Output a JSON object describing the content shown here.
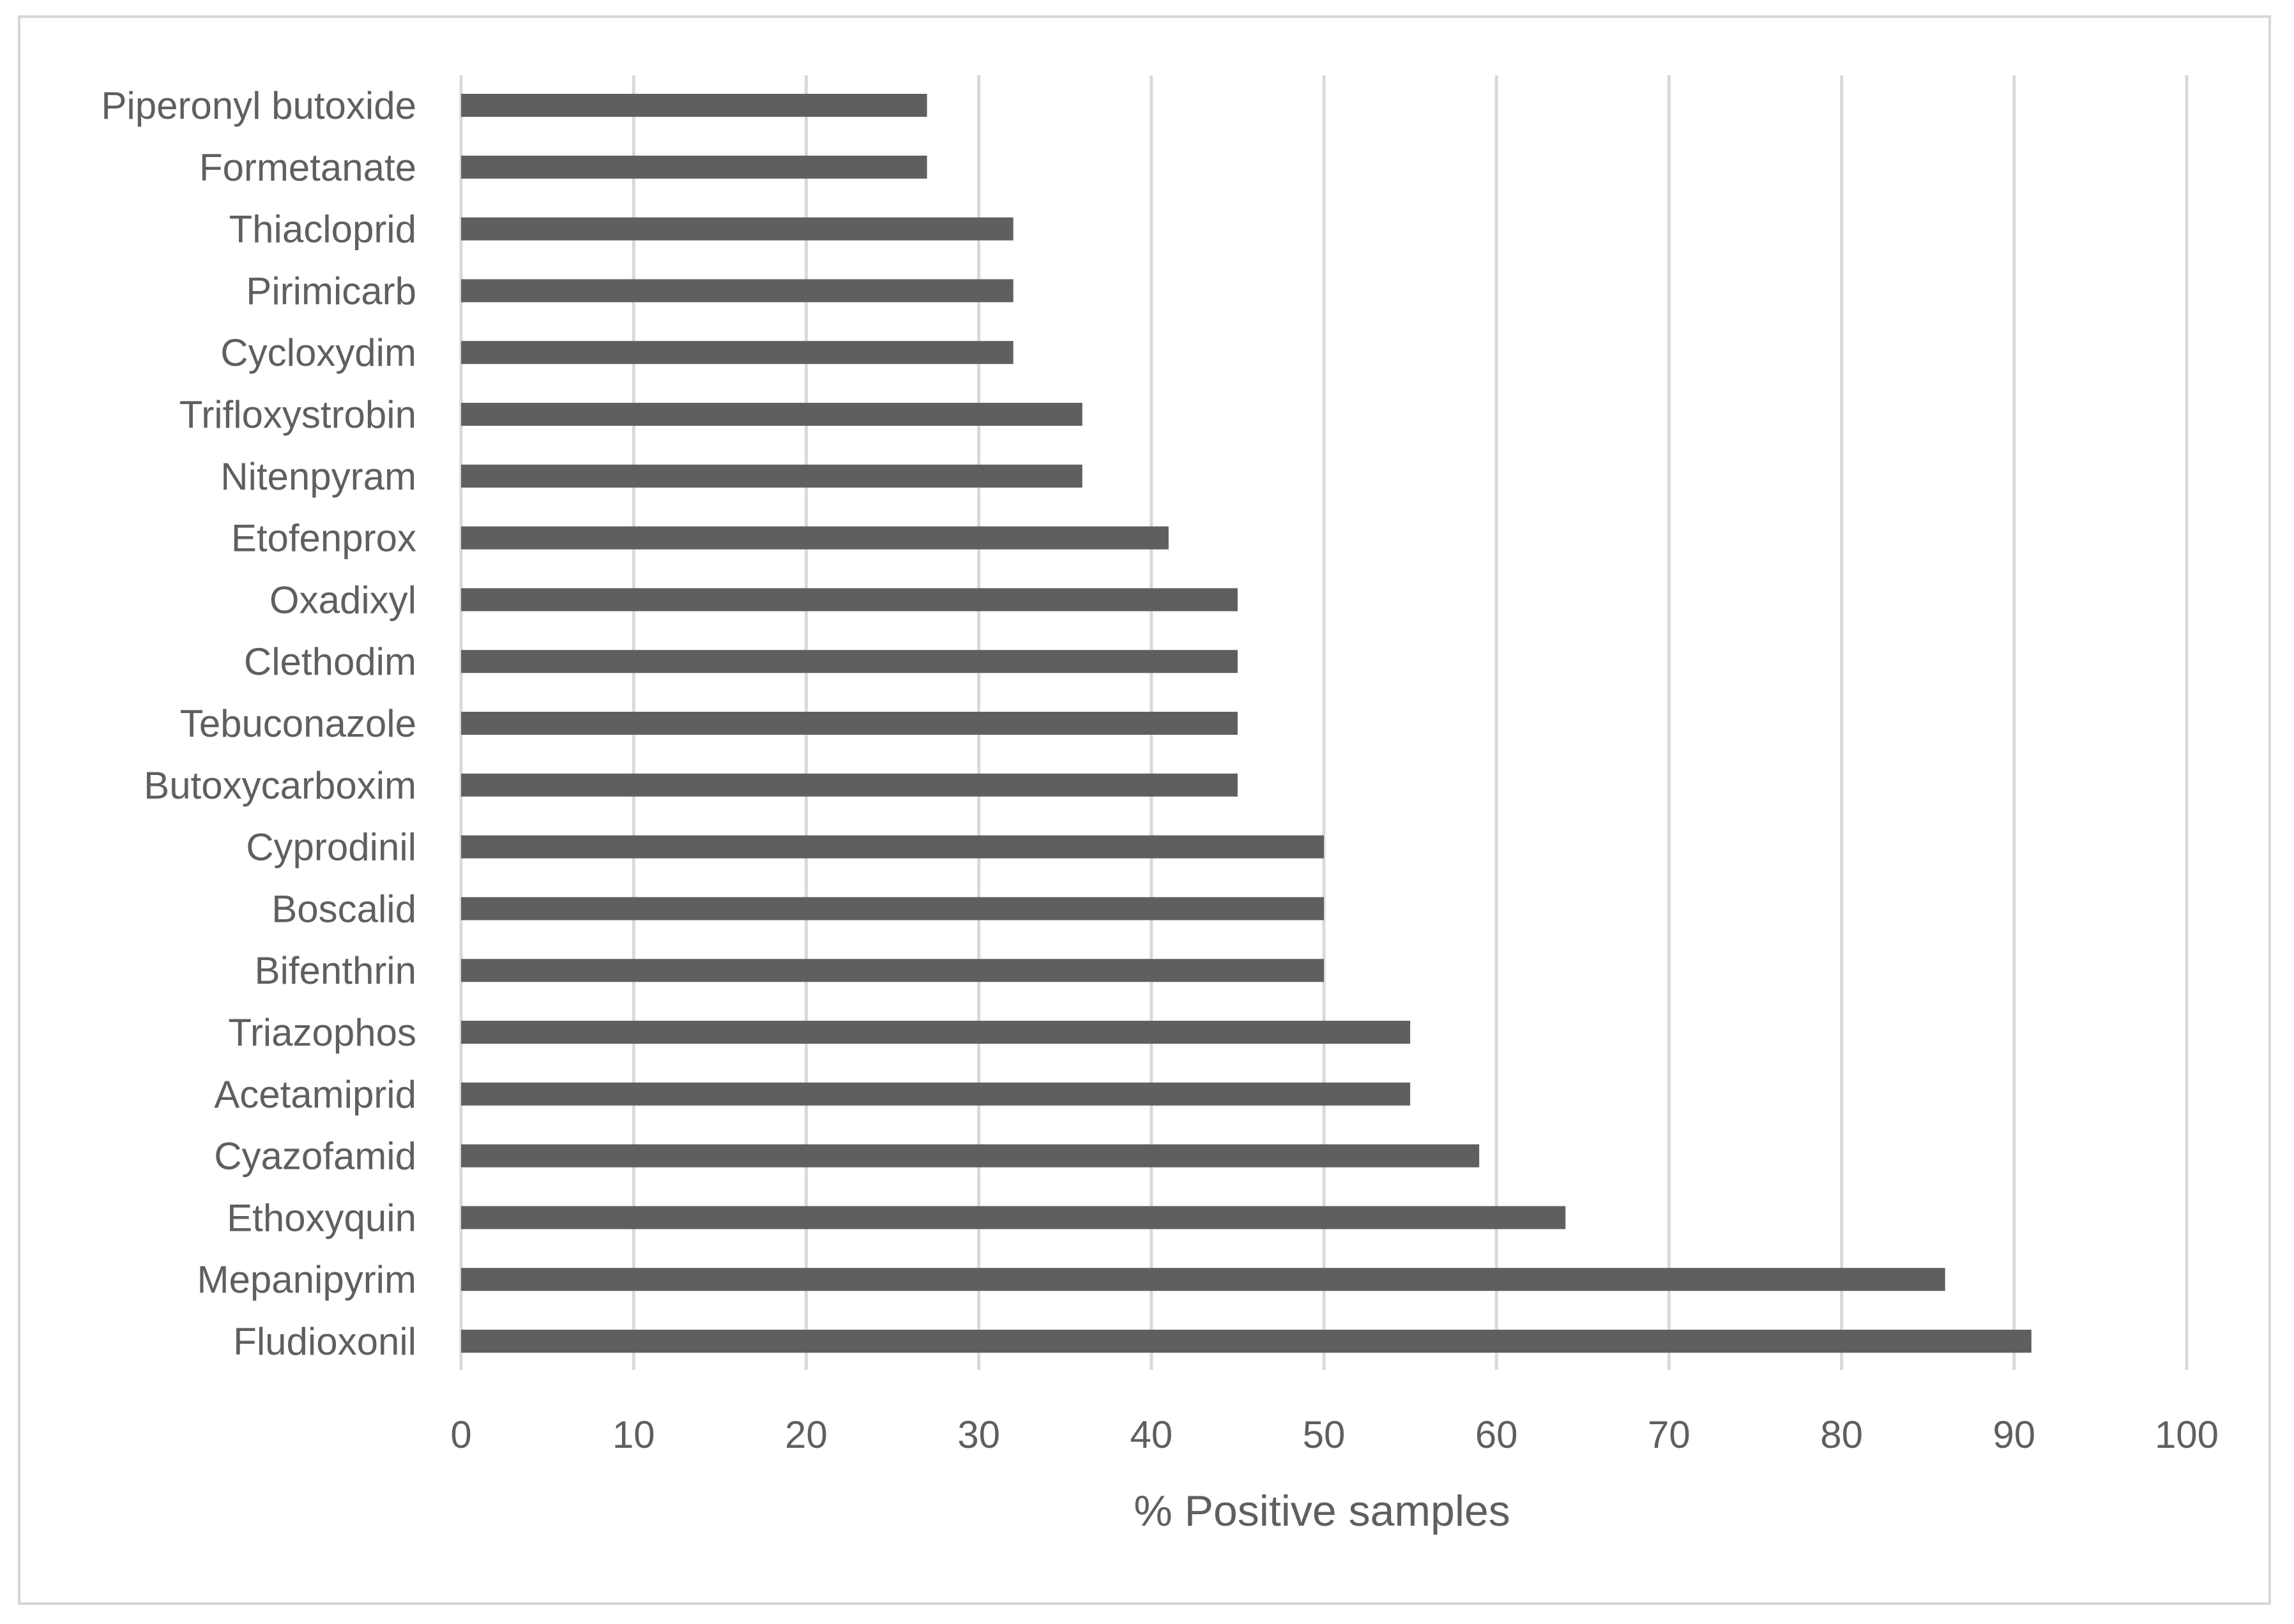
{
  "chart_data": {
    "type": "bar",
    "orientation": "horizontal",
    "categories": [
      "Piperonyl butoxide",
      "Formetanate",
      "Thiacloprid",
      "Pirimicarb",
      "Cycloxydim",
      "Trifloxystrobin",
      "Nitenpyram",
      "Etofenprox",
      "Oxadixyl",
      "Clethodim",
      "Tebuconazole",
      "Butoxycarboxim",
      "Cyprodinil",
      "Boscalid",
      "Bifenthrin",
      "Triazophos",
      "Acetamiprid",
      "Cyazofamid",
      "Ethoxyquin",
      "Mepanipyrim",
      "Fludioxonil"
    ],
    "values": [
      27,
      27,
      32,
      32,
      32,
      36,
      36,
      41,
      45,
      45,
      45,
      45,
      50,
      50,
      50,
      55,
      55,
      59,
      64,
      86,
      91
    ],
    "xlabel": "% Positive samples",
    "ylabel": "",
    "xlim": [
      0,
      100
    ],
    "xticks": [
      "0",
      "10",
      "20",
      "30",
      "40",
      "50",
      "60",
      "70",
      "80",
      "90",
      "100"
    ],
    "grid": "vertical",
    "bar_color": "#5f5f5f",
    "grid_color": "#d9d9d9",
    "text_color": "#5f5f5f"
  }
}
